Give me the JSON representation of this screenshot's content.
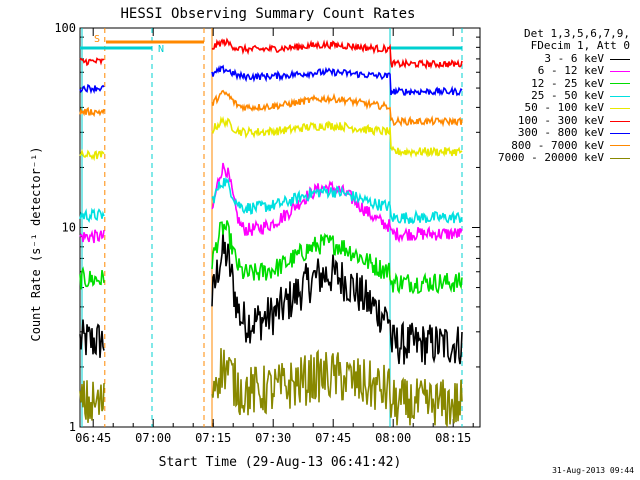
{
  "chart_data": {
    "type": "line",
    "title": "HESSI Observing Summary Count Rates",
    "xlabel": "Start Time (29-Aug-13 06:41:42)",
    "ylabel": "Count Rate (s⁻¹ detector⁻¹)",
    "yscale": "log",
    "ylim": [
      1,
      100
    ],
    "y_ticks": [
      "1",
      "10",
      "100"
    ],
    "x_ticks": [
      "06:45",
      "07:00",
      "07:15",
      "07:30",
      "07:45",
      "08:00",
      "08:15"
    ],
    "x_tick_minutes": [
      3.3,
      18.3,
      33.3,
      48.3,
      63.3,
      78.3,
      93.3
    ],
    "xlim_minutes": [
      0,
      100
    ],
    "legend_header": [
      "Det 1,3,5,6,7,9,",
      "FDecim 1, Att 0"
    ],
    "markers": {
      "s_label": "S",
      "n_label": "N"
    },
    "footer_date": "31-Aug-2013 09:44",
    "series": [
      {
        "name": "3 - 6 keV",
        "color": "#000000",
        "baseline": 3.3,
        "peak": 7.5,
        "pre": 2.7,
        "post": 2.6,
        "noise": 0.25
      },
      {
        "name": "6 - 12 keV",
        "color": "#ff00ff",
        "baseline": 9.6,
        "peak": 20,
        "pre": 9.0,
        "post": 9.3,
        "noise": 0.08
      },
      {
        "name": "12 - 25 keV",
        "color": "#00dd00",
        "baseline": 5.8,
        "peak": 10,
        "pre": 5.5,
        "post": 5.3,
        "noise": 0.12
      },
      {
        "name": "25 - 50 keV",
        "color": "#00e0e0",
        "baseline": 12.5,
        "peak": 17,
        "pre": 11.5,
        "post": 11.2,
        "noise": 0.07
      },
      {
        "name": "50 - 100 keV",
        "color": "#e8e800",
        "baseline": 30,
        "peak": 34,
        "pre": 23,
        "post": 24,
        "noise": 0.05
      },
      {
        "name": "100 - 300 keV",
        "color": "#ff0000",
        "baseline": 78,
        "peak": 85,
        "pre": 68,
        "post": 66,
        "noise": 0.04
      },
      {
        "name": "300 - 800 keV",
        "color": "#0000ff",
        "baseline": 57,
        "peak": 62,
        "pre": 50,
        "post": 48,
        "noise": 0.04
      },
      {
        "name": "800 - 7000 keV",
        "color": "#ff8800",
        "baseline": 40,
        "peak": 47,
        "pre": 38,
        "post": 34,
        "noise": 0.04
      },
      {
        "name": "7000 - 20000 keV",
        "color": "#888800",
        "baseline": 1.5,
        "peak": 2.0,
        "pre": 1.3,
        "post": 1.3,
        "noise": 0.3
      }
    ]
  }
}
